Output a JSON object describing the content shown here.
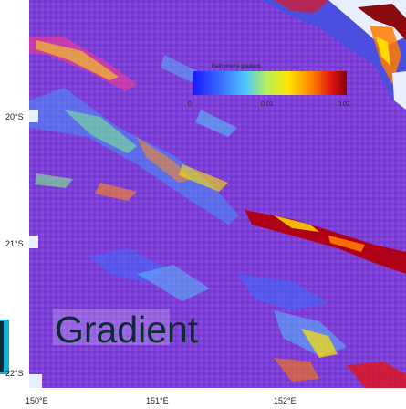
{
  "map": {
    "latitude_labels": [
      "20°S",
      "21°S",
      "22°S"
    ],
    "longitude_labels": [
      "150°E",
      "151°E",
      "152°E"
    ]
  },
  "colorbar": {
    "title": "Bathymetry gradient",
    "ticks": [
      "0",
      "0.01",
      "0.02"
    ],
    "colors": [
      "#1a1aff",
      "#3a6dff",
      "#4fc8ff",
      "#b6f05a",
      "#ffe600",
      "#ff7a00",
      "#e01414",
      "#8a0000"
    ]
  },
  "overlay": {
    "word": "Gradient"
  },
  "colors": {
    "background_purple": "#8b3fd8",
    "field_blue": "#3f52d8",
    "land_white": "#ffffff",
    "ridge_red": "#b00018",
    "accent_cyan": "#18b0d8"
  }
}
